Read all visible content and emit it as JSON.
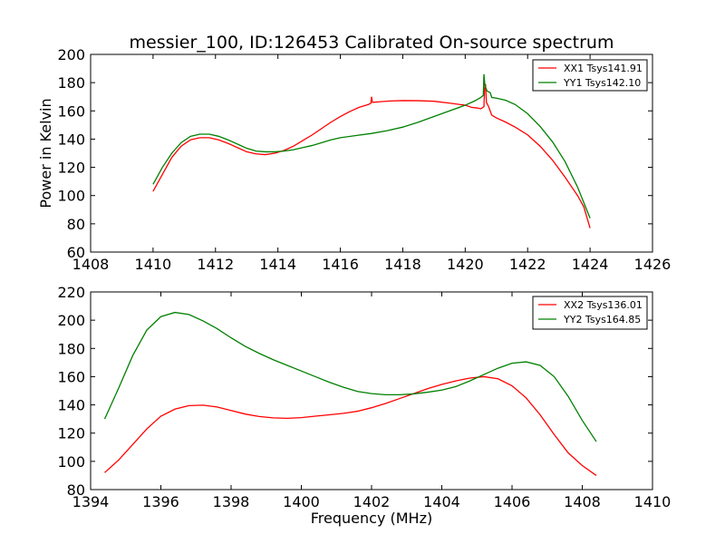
{
  "figure": {
    "title": "messier_100, ID:126453 Calibrated On-source spectrum"
  },
  "chart_data": [
    {
      "type": "line",
      "title": "messier_100, ID:126453 Calibrated On-source spectrum",
      "xlabel": "",
      "ylabel": "Power in Kelvin",
      "xlim": [
        1408,
        1426
      ],
      "ylim": [
        60,
        200
      ],
      "xticks": [
        1408,
        1410,
        1412,
        1414,
        1416,
        1418,
        1420,
        1422,
        1424,
        1426
      ],
      "yticks": [
        60,
        80,
        100,
        120,
        140,
        160,
        180,
        200
      ],
      "grid": false,
      "legend_position": "top-right",
      "series": [
        {
          "name": "XX1 Tsys141.91",
          "color": "#ff0000",
          "points": [
            [
              1410.0,
              103
            ],
            [
              1410.3,
              115
            ],
            [
              1410.6,
              127
            ],
            [
              1410.9,
              135
            ],
            [
              1411.2,
              139.5
            ],
            [
              1411.5,
              141
            ],
            [
              1411.8,
              141
            ],
            [
              1412.1,
              139.5
            ],
            [
              1412.4,
              137
            ],
            [
              1412.7,
              134
            ],
            [
              1413.0,
              131
            ],
            [
              1413.3,
              129.5
            ],
            [
              1413.6,
              129
            ],
            [
              1413.9,
              130
            ],
            [
              1414.2,
              132
            ],
            [
              1414.5,
              135
            ],
            [
              1414.8,
              139
            ],
            [
              1415.1,
              143
            ],
            [
              1415.4,
              147.5
            ],
            [
              1415.7,
              152
            ],
            [
              1416.0,
              156
            ],
            [
              1416.3,
              159.5
            ],
            [
              1416.6,
              162.5
            ],
            [
              1416.9,
              164.5
            ],
            [
              1416.98,
              165.5
            ],
            [
              1417.0,
              170
            ],
            [
              1417.03,
              166
            ],
            [
              1417.3,
              166.5
            ],
            [
              1417.6,
              167
            ],
            [
              1418.0,
              167.3
            ],
            [
              1418.5,
              167.2
            ],
            [
              1419.0,
              166.8
            ],
            [
              1419.5,
              165.5
            ],
            [
              1420.0,
              164
            ],
            [
              1420.2,
              162.5
            ],
            [
              1420.4,
              162
            ],
            [
              1420.5,
              161.5
            ],
            [
              1420.6,
              163
            ],
            [
              1420.62,
              176
            ],
            [
              1420.65,
              179
            ],
            [
              1420.68,
              166
            ],
            [
              1420.75,
              163
            ],
            [
              1420.85,
              157
            ],
            [
              1421.0,
              155
            ],
            [
              1421.3,
              152
            ],
            [
              1421.6,
              148.5
            ],
            [
              1422.0,
              143
            ],
            [
              1422.4,
              135
            ],
            [
              1422.8,
              125
            ],
            [
              1423.2,
              113
            ],
            [
              1423.6,
              100
            ],
            [
              1423.8,
              92
            ],
            [
              1424.0,
              77
            ]
          ]
        },
        {
          "name": "YY1 Tsys142.10",
          "color": "#008000",
          "points": [
            [
              1410.0,
              108
            ],
            [
              1410.3,
              120
            ],
            [
              1410.6,
              130
            ],
            [
              1410.9,
              137.5
            ],
            [
              1411.2,
              142
            ],
            [
              1411.5,
              143.5
            ],
            [
              1411.8,
              143.5
            ],
            [
              1412.1,
              142
            ],
            [
              1412.4,
              139.5
            ],
            [
              1412.7,
              136.5
            ],
            [
              1413.0,
              133.5
            ],
            [
              1413.3,
              131.5
            ],
            [
              1413.6,
              131
            ],
            [
              1413.9,
              131
            ],
            [
              1414.2,
              131.5
            ],
            [
              1414.5,
              132.5
            ],
            [
              1414.8,
              134
            ],
            [
              1415.1,
              135.5
            ],
            [
              1415.4,
              137.5
            ],
            [
              1415.7,
              139.5
            ],
            [
              1416.0,
              141
            ],
            [
              1416.5,
              142.5
            ],
            [
              1417.0,
              144
            ],
            [
              1417.5,
              146
            ],
            [
              1418.0,
              148.5
            ],
            [
              1418.5,
              152
            ],
            [
              1419.0,
              156
            ],
            [
              1419.5,
              160
            ],
            [
              1420.0,
              164
            ],
            [
              1420.3,
              167
            ],
            [
              1420.5,
              169.5
            ],
            [
              1420.58,
              171
            ],
            [
              1420.6,
              186
            ],
            [
              1420.63,
              178
            ],
            [
              1420.7,
              174
            ],
            [
              1420.8,
              173
            ],
            [
              1420.85,
              169.5
            ],
            [
              1421.0,
              169
            ],
            [
              1421.3,
              167.5
            ],
            [
              1421.6,
              164.5
            ],
            [
              1422.0,
              158
            ],
            [
              1422.4,
              149
            ],
            [
              1422.8,
              138
            ],
            [
              1423.2,
              124
            ],
            [
              1423.6,
              106
            ],
            [
              1424.0,
              84
            ]
          ]
        }
      ]
    },
    {
      "type": "line",
      "title": "",
      "xlabel": "Frequency (MHz)",
      "ylabel": "",
      "xlim": [
        1394,
        1410
      ],
      "ylim": [
        80,
        220
      ],
      "xticks": [
        1394,
        1396,
        1398,
        1400,
        1402,
        1404,
        1406,
        1408,
        1410
      ],
      "yticks": [
        80,
        100,
        120,
        140,
        160,
        180,
        200,
        220
      ],
      "grid": false,
      "legend_position": "top-right",
      "series": [
        {
          "name": "XX2 Tsys136.01",
          "color": "#ff0000",
          "points": [
            [
              1394.4,
              92
            ],
            [
              1394.8,
              101
            ],
            [
              1395.2,
              112
            ],
            [
              1395.6,
              123
            ],
            [
              1396.0,
              132
            ],
            [
              1396.4,
              137
            ],
            [
              1396.8,
              139.5
            ],
            [
              1397.2,
              139.8
            ],
            [
              1397.6,
              138.5
            ],
            [
              1398.0,
              136
            ],
            [
              1398.4,
              133.5
            ],
            [
              1398.8,
              131.8
            ],
            [
              1399.2,
              130.8
            ],
            [
              1399.6,
              130.5
            ],
            [
              1400.0,
              131
            ],
            [
              1400.4,
              132
            ],
            [
              1400.8,
              133
            ],
            [
              1401.2,
              134
            ],
            [
              1401.6,
              135.5
            ],
            [
              1402.0,
              138
            ],
            [
              1402.4,
              141
            ],
            [
              1402.8,
              144.5
            ],
            [
              1403.2,
              148
            ],
            [
              1403.6,
              151.5
            ],
            [
              1404.0,
              154.5
            ],
            [
              1404.4,
              157
            ],
            [
              1404.8,
              159
            ],
            [
              1405.2,
              160
            ],
            [
              1405.6,
              158.5
            ],
            [
              1406.0,
              153.5
            ],
            [
              1406.4,
              145
            ],
            [
              1406.8,
              133
            ],
            [
              1407.2,
              119
            ],
            [
              1407.6,
              106
            ],
            [
              1408.0,
              97
            ],
            [
              1408.4,
              90
            ]
          ]
        },
        {
          "name": "YY2 Tsys164.85",
          "color": "#008000",
          "points": [
            [
              1394.4,
              130
            ],
            [
              1394.8,
              152
            ],
            [
              1395.2,
              175
            ],
            [
              1395.6,
              193
            ],
            [
              1396.0,
              202.5
            ],
            [
              1396.4,
              205.5
            ],
            [
              1396.8,
              204
            ],
            [
              1397.2,
              199.5
            ],
            [
              1397.6,
              194
            ],
            [
              1398.0,
              187.5
            ],
            [
              1398.4,
              181.5
            ],
            [
              1398.8,
              176.5
            ],
            [
              1399.2,
              172
            ],
            [
              1399.6,
              168
            ],
            [
              1400.0,
              164
            ],
            [
              1400.4,
              160
            ],
            [
              1400.8,
              156
            ],
            [
              1401.2,
              152.5
            ],
            [
              1401.6,
              149.5
            ],
            [
              1402.0,
              148
            ],
            [
              1402.4,
              147.2
            ],
            [
              1402.8,
              147.2
            ],
            [
              1403.2,
              147.8
            ],
            [
              1403.6,
              149
            ],
            [
              1404.0,
              150.5
            ],
            [
              1404.4,
              153
            ],
            [
              1404.8,
              157
            ],
            [
              1405.2,
              161.5
            ],
            [
              1405.6,
              166
            ],
            [
              1406.0,
              169.5
            ],
            [
              1406.4,
              170.5
            ],
            [
              1406.8,
              168
            ],
            [
              1407.2,
              160
            ],
            [
              1407.6,
              146
            ],
            [
              1408.0,
              129
            ],
            [
              1408.4,
              114
            ]
          ]
        }
      ]
    }
  ]
}
